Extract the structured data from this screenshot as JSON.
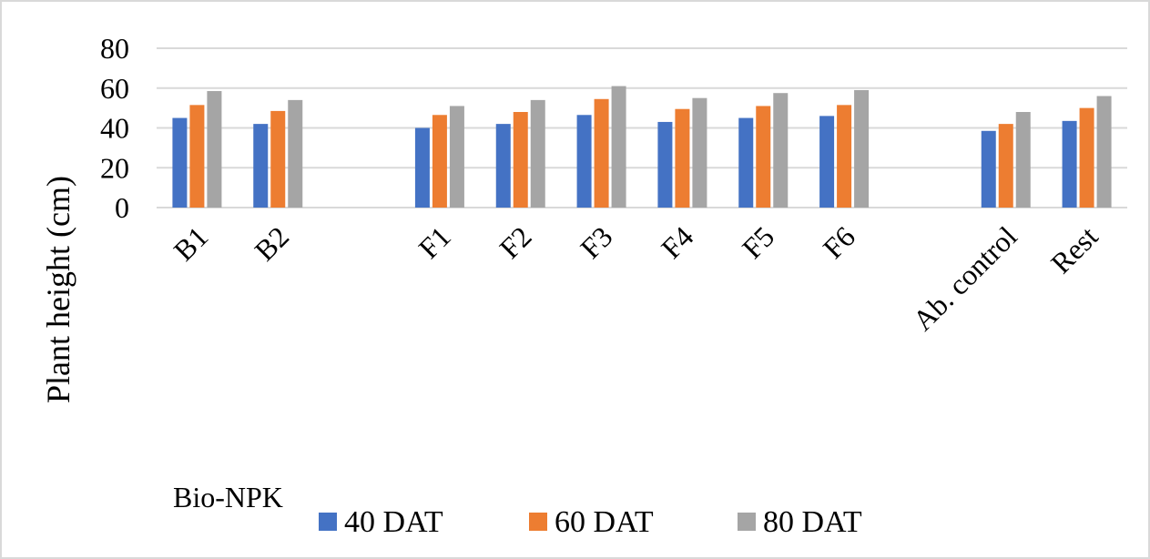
{
  "chart_data": {
    "type": "bar",
    "categories": [
      "B1",
      "B2",
      "",
      "F1",
      "F2",
      "F3",
      "F4",
      "F5",
      "F6",
      "",
      "Ab. control",
      "Rest"
    ],
    "series": [
      {
        "name": "40 DAT",
        "color": "#4472c4",
        "values": [
          45,
          42,
          null,
          40,
          42,
          46.5,
          43,
          45,
          46,
          null,
          38.5,
          43.5
        ]
      },
      {
        "name": "60 DAT",
        "color": "#ed7d31",
        "values": [
          51.5,
          48.5,
          null,
          46.5,
          48,
          54.5,
          49.5,
          51,
          51.5,
          null,
          42,
          50
        ]
      },
      {
        "name": "80 DAT",
        "color": "#a5a5a5",
        "values": [
          58.5,
          54,
          null,
          51,
          54,
          61,
          55,
          57.5,
          59,
          null,
          48,
          56
        ]
      }
    ],
    "title": "",
    "xlabel": "",
    "ylabel": "Plant height (cm)",
    "ylim": [
      0,
      80
    ],
    "yticks": [
      "0",
      "20",
      "40",
      "60",
      "80"
    ],
    "grid": true,
    "legend_position": "bottom",
    "annotation": "Bio-NPK"
  }
}
